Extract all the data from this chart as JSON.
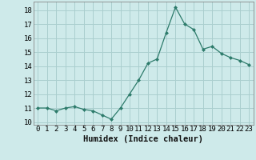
{
  "x": [
    0,
    1,
    2,
    3,
    4,
    5,
    6,
    7,
    8,
    9,
    10,
    11,
    12,
    13,
    14,
    15,
    16,
    17,
    18,
    19,
    20,
    21,
    22,
    23
  ],
  "y": [
    11.0,
    11.0,
    10.8,
    11.0,
    11.1,
    10.9,
    10.8,
    10.5,
    10.2,
    11.0,
    12.0,
    13.0,
    14.2,
    14.5,
    16.4,
    18.2,
    17.0,
    16.6,
    15.2,
    15.4,
    14.9,
    14.6,
    14.4,
    14.1
  ],
  "xlabel": "Humidex (Indice chaleur)",
  "ylim": [
    9.8,
    18.6
  ],
  "xlim": [
    -0.5,
    23.5
  ],
  "yticks": [
    10,
    11,
    12,
    13,
    14,
    15,
    16,
    17,
    18
  ],
  "xticks": [
    0,
    1,
    2,
    3,
    4,
    5,
    6,
    7,
    8,
    9,
    10,
    11,
    12,
    13,
    14,
    15,
    16,
    17,
    18,
    19,
    20,
    21,
    22,
    23
  ],
  "line_color": "#2d7b6b",
  "marker_color": "#2d7b6b",
  "bg_color": "#ceeaea",
  "grid_color": "#aacece",
  "tick_fontsize": 6.5,
  "label_fontsize": 7.5,
  "font_family": "monospace"
}
